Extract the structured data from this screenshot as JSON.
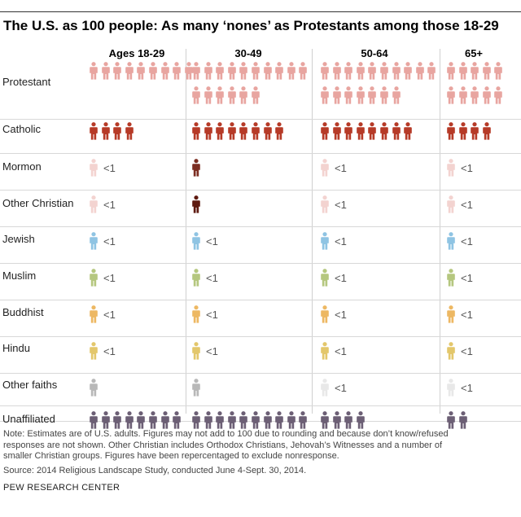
{
  "title": "The U.S. as 100 people: As many ‘nones’ as Protestants among those 18-29",
  "chart_data": {
    "type": "pictograph",
    "unit": "1 figure = 1 person out of 100 U.S. adults",
    "title": "The U.S. as 100 people: As many ‘nones’ as Protestants among those 18-29",
    "columns": [
      "Ages 18-29",
      "30-49",
      "50-64",
      "65+"
    ],
    "rows": [
      {
        "label": "Protestant",
        "color": "#e8a5a0",
        "values": [
          9,
          16,
          17,
          10
        ],
        "less_than_one": [
          false,
          false,
          false,
          false
        ]
      },
      {
        "label": "Catholic",
        "color": "#b63a27",
        "values": [
          4,
          8,
          8,
          4
        ],
        "less_than_one": [
          false,
          false,
          false,
          false
        ]
      },
      {
        "label": "Mormon",
        "color": "#f3d3d0",
        "values": [
          0,
          1,
          0,
          0
        ],
        "less_than_one": [
          true,
          false,
          true,
          true
        ]
      },
      {
        "label": "Other Christian",
        "color": "#f3d3d0",
        "values": [
          0,
          1,
          0,
          0
        ],
        "less_than_one": [
          true,
          false,
          true,
          true
        ]
      },
      {
        "label": "Jewish",
        "color": "#8fc4e3",
        "values": [
          0,
          0,
          0,
          0
        ],
        "less_than_one": [
          true,
          true,
          true,
          true
        ]
      },
      {
        "label": "Muslim",
        "color": "#b5c77f",
        "values": [
          0,
          0,
          0,
          0
        ],
        "less_than_one": [
          true,
          true,
          true,
          true
        ]
      },
      {
        "label": "Buddhist",
        "color": "#edb863",
        "values": [
          0,
          0,
          0,
          0
        ],
        "less_than_one": [
          true,
          true,
          true,
          true
        ]
      },
      {
        "label": "Hindu",
        "color": "#e3c76b",
        "values": [
          0,
          0,
          0,
          0
        ],
        "less_than_one": [
          true,
          true,
          true,
          true
        ]
      },
      {
        "label": "Other faiths",
        "color": "#b8b8b8",
        "values": [
          1,
          1,
          0,
          0
        ],
        "less_than_one": [
          false,
          false,
          true,
          true
        ]
      },
      {
        "label": "Unaffiliated",
        "color": "#6c5f75",
        "values": [
          8,
          10,
          4,
          2
        ],
        "less_than_one": [
          false,
          false,
          false,
          false
        ]
      }
    ],
    "less_than_label": "<1",
    "special_colors": {
      "mormon_30_49": "#7c2e22",
      "other_christian_30_49": "#5e1a10",
      "faint_less_than": "#e8e8e8"
    }
  },
  "notes": [
    "Note: Estimates are of U.S. adults. Figures may not add to 100 due to rounding and because don’t know/refused",
    "responses are not shown. Other Christian includes Orthodox Christians, Jehovah’s Witnesses and a number of",
    "smaller Christian groups. Figures have been repercentaged to exclude nonresponse."
  ],
  "source": "Source: 2014 Religious Landscape Study, conducted June 4-Sept. 30, 2014.",
  "brand": "PEW RESEARCH CENTER"
}
